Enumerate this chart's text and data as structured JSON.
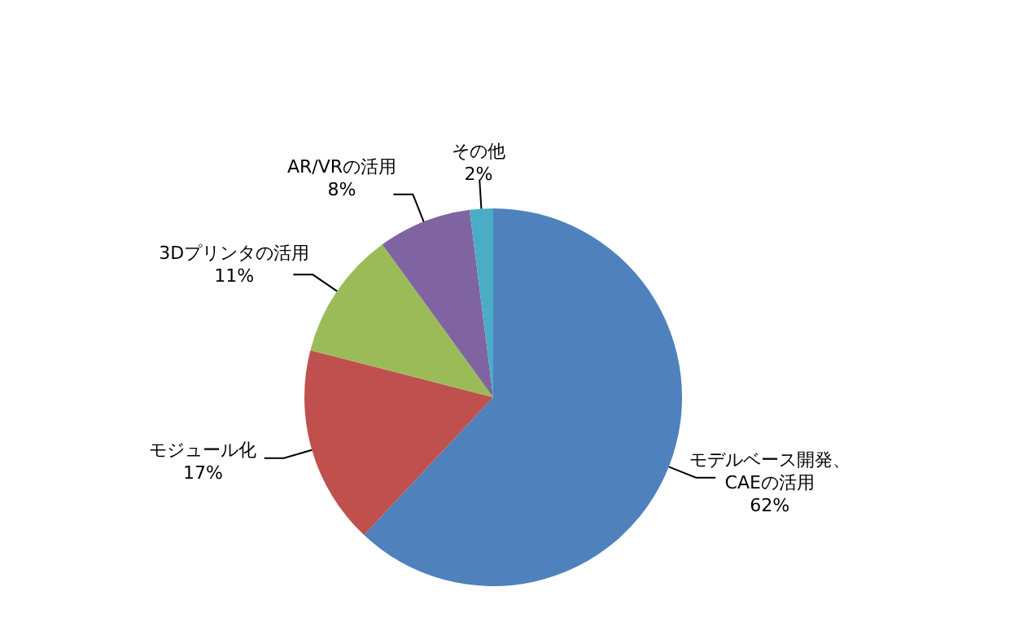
{
  "chart_data": {
    "type": "pie",
    "categories": [
      "モデルベース開発、CAEの活用",
      "モジュール化",
      "3Dプリンタの活用",
      "AR/VRの活用",
      "その他"
    ],
    "values": [
      62,
      17,
      11,
      8,
      2
    ],
    "value_labels": [
      "62%",
      "17%",
      "11%",
      "8%",
      "2%"
    ],
    "colors": [
      "#4f81bd",
      "#c0504d",
      "#9bbb59",
      "#8064a2",
      "#4bacc6"
    ]
  }
}
